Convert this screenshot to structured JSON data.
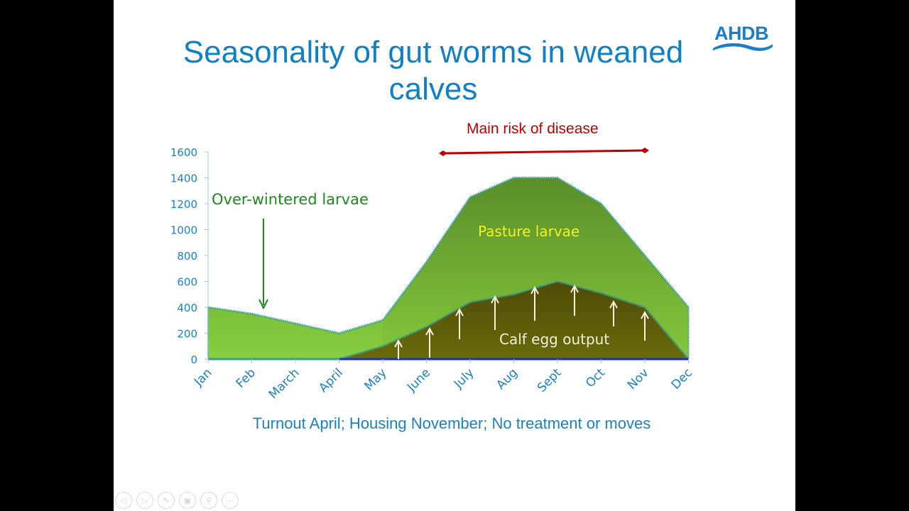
{
  "slide": {
    "title_line1": "Seasonality of gut worms in weaned",
    "title_line2": "calves",
    "logo_text": "AHDB",
    "risk_label": "Main risk of disease",
    "caption": "Turnout April; Housing November; No treatment or moves",
    "annotations": {
      "over_wintered": "Over-wintered larvae",
      "pasture": "Pasture larvae",
      "egg_output": "Calf egg output"
    },
    "colors": {
      "title": "#1080c4",
      "axis_text": "#1a82c2",
      "risk": "#c00000",
      "pasture_top": "#5a8e2a",
      "pasture_bottom": "#84c83c",
      "egg_top": "#4e4a08",
      "egg_bottom": "#6a6a0a",
      "outline": "#3aa08a"
    },
    "presenter_controls": [
      "previous-slide",
      "next-slide",
      "pen",
      "see-all-slides",
      "zoom",
      "more-options"
    ]
  },
  "chart_data": {
    "type": "area",
    "title": "Seasonality of gut worms in weaned calves",
    "xlabel": "Turnout April; Housing November; No treatment or moves",
    "ylabel": "",
    "categories": [
      "Jan",
      "Feb",
      "March",
      "April",
      "May",
      "June",
      "July",
      "Aug",
      "Sept",
      "Oct",
      "Nov",
      "Dec"
    ],
    "yticks": [
      0,
      200,
      400,
      600,
      800,
      1000,
      1200,
      1400,
      1600
    ],
    "ylim": [
      0,
      1600
    ],
    "grid": false,
    "legend": "none (inline annotations)",
    "series": [
      {
        "name": "Over-wintered / pasture larvae (total)",
        "values": [
          400,
          350,
          275,
          200,
          300,
          750,
          1250,
          1400,
          1400,
          1200,
          800,
          400
        ]
      },
      {
        "name": "Calf egg output",
        "values": [
          0,
          0,
          0,
          0,
          100,
          250,
          440,
          500,
          600,
          510,
          400,
          0
        ]
      }
    ],
    "annotations": [
      {
        "text": "Over-wintered larvae",
        "position": "Feb",
        "arrow": "down"
      },
      {
        "text": "Pasture larvae",
        "position": "Aug-Sept"
      },
      {
        "text": "Calf egg output",
        "position": "Aug-Oct",
        "arrows": "up"
      },
      {
        "text": "Main risk of disease",
        "range": [
          "June",
          "Nov"
        ]
      }
    ]
  }
}
